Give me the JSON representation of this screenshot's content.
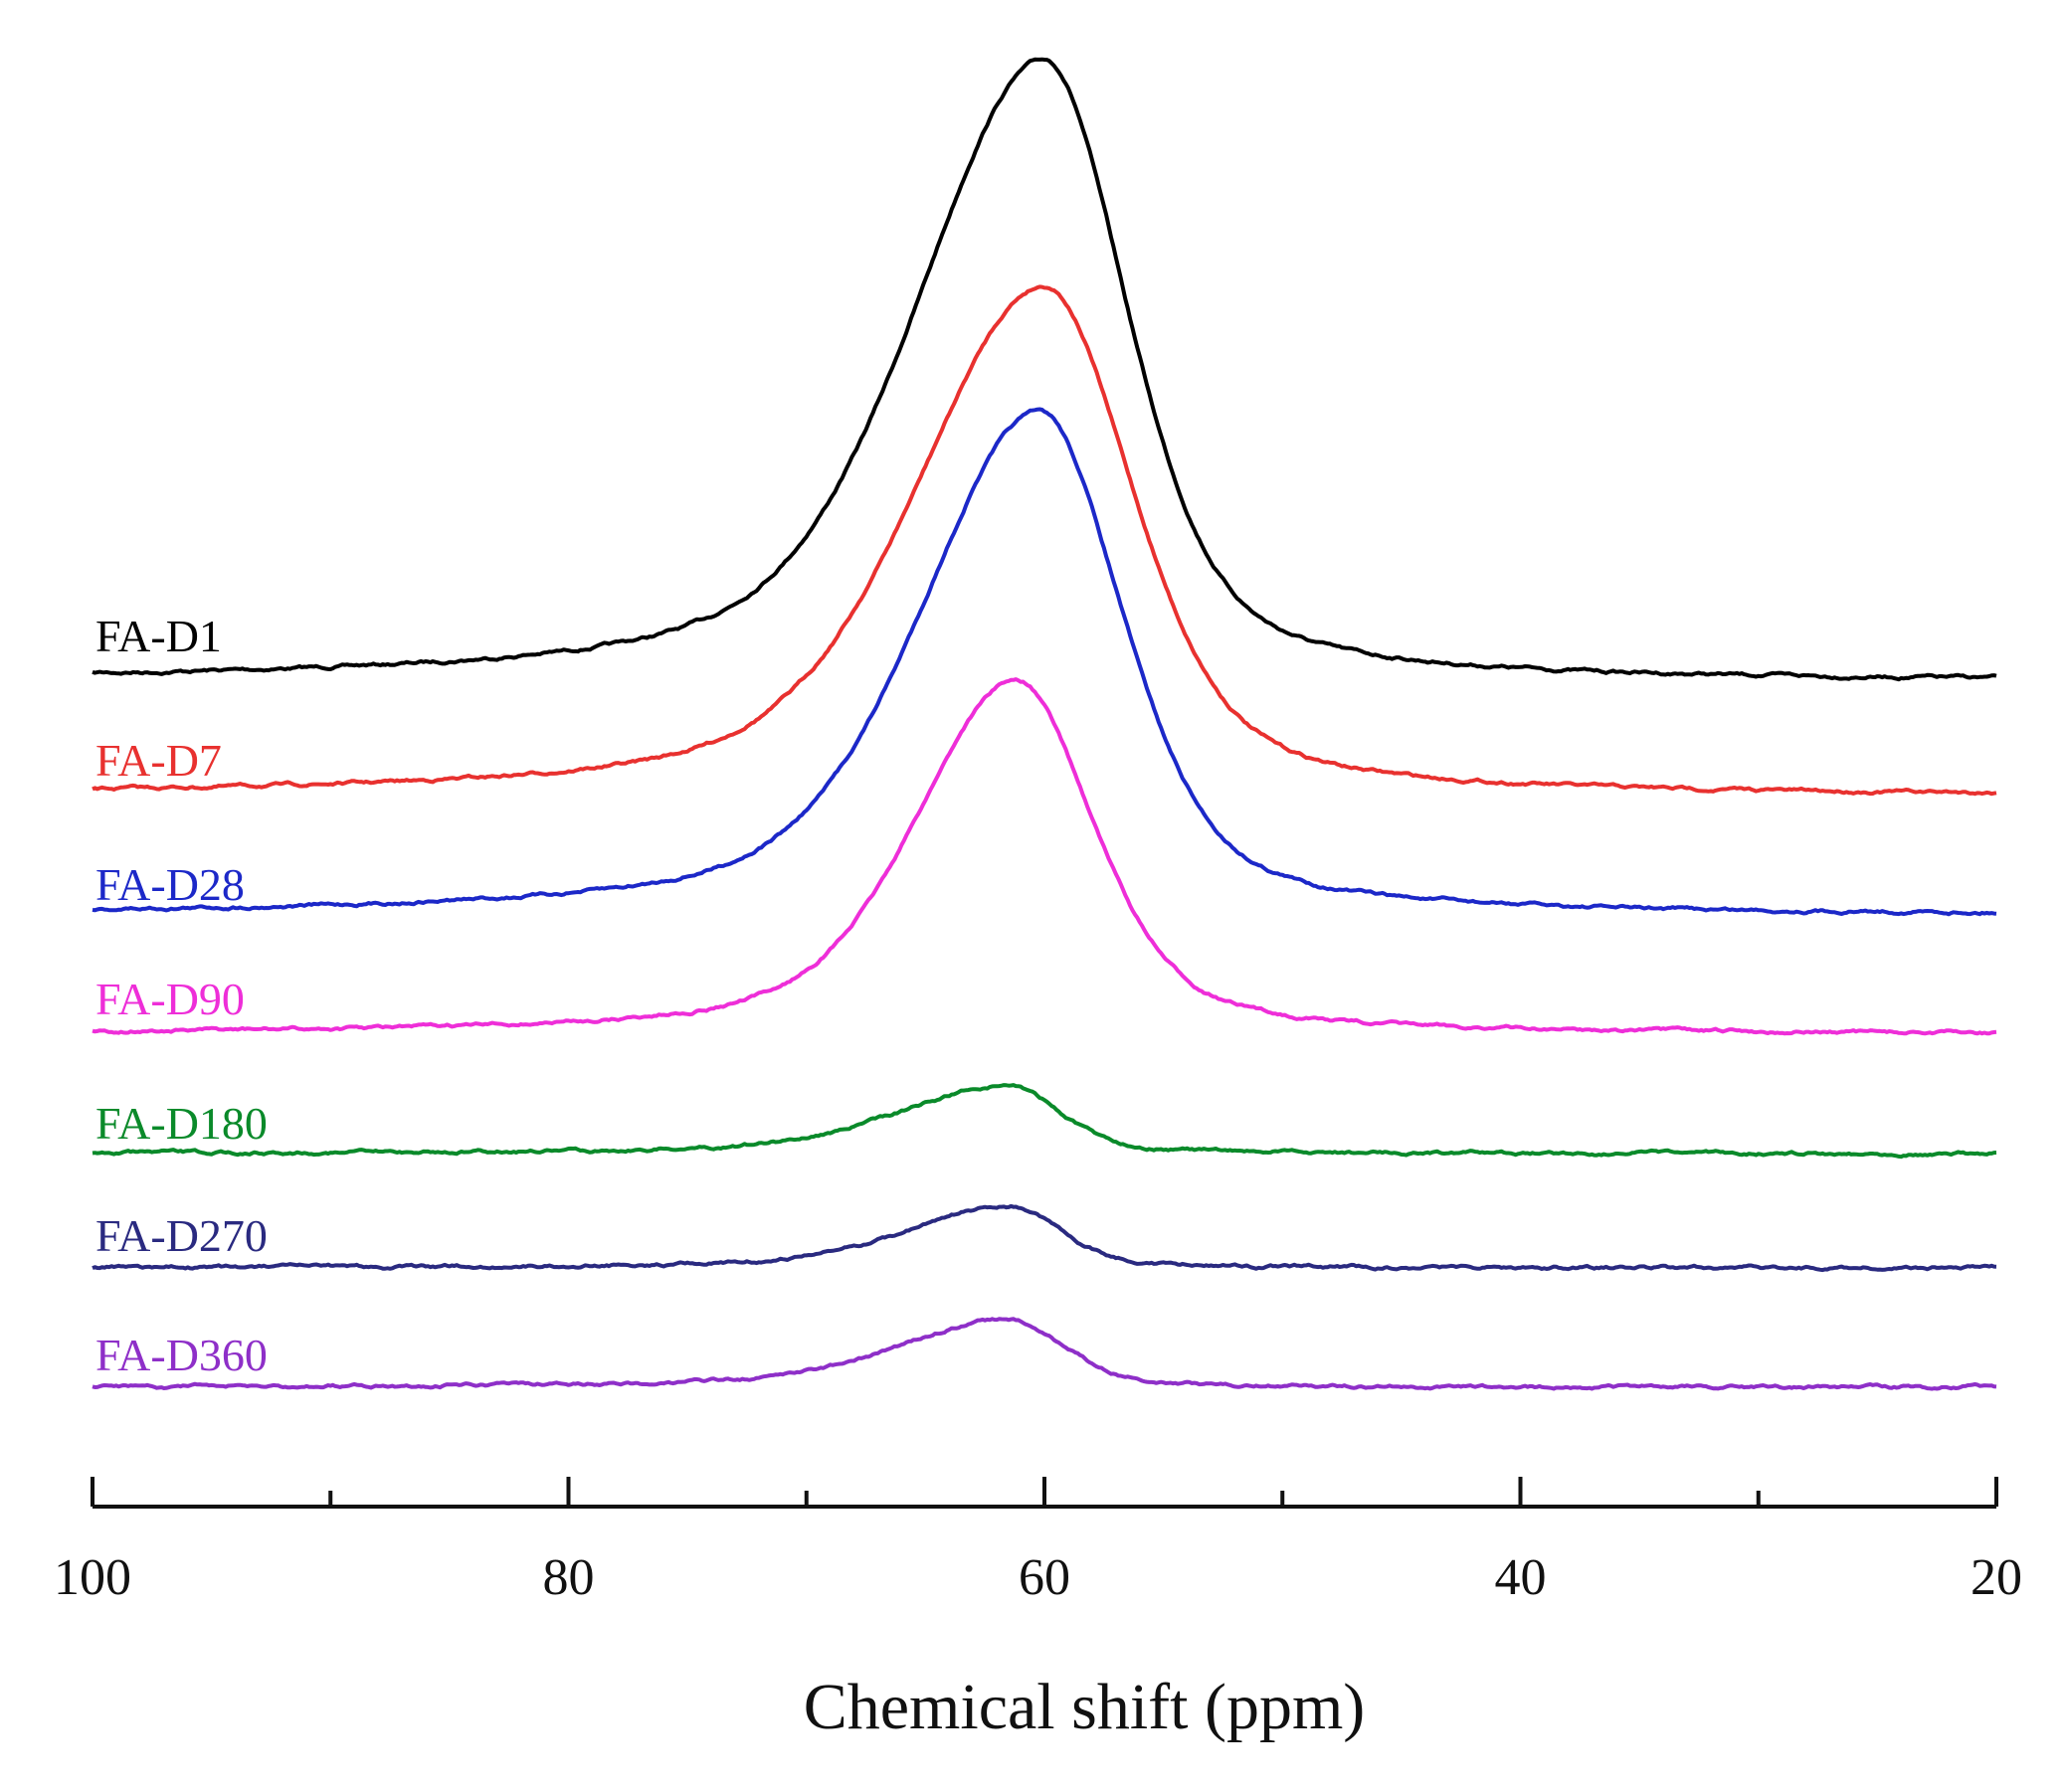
{
  "chart_data": {
    "type": "line",
    "title": "",
    "xlabel": "Chemical shift (ppm)",
    "ylabel": "",
    "xlim": [
      100,
      20
    ],
    "x_reversed": true,
    "xticks": [
      100,
      80,
      60,
      40,
      20
    ],
    "xtick_labels": [
      "100",
      "80",
      "60",
      "40",
      "20"
    ],
    "minor_xticks": [
      90,
      70,
      50,
      30
    ],
    "y_axis_visible": false,
    "grid": false,
    "stacked_offsets": true,
    "series": [
      {
        "name": "FA-D1",
        "label": "FA-D1",
        "color": "#000000",
        "baseline": 0.0,
        "peak_ppm": 60.0,
        "peak_height": 1.0,
        "left_width": 7.0,
        "right_width": 4.5
      },
      {
        "name": "FA-D7",
        "label": "FA-D7",
        "color": "#e8312f",
        "baseline": 0.0,
        "peak_ppm": 60.0,
        "peak_height": 0.82,
        "left_width": 7.0,
        "right_width": 4.8
      },
      {
        "name": "FA-D28",
        "label": "FA-D28",
        "color": "#1c28c8",
        "baseline": 0.0,
        "peak_ppm": 60.2,
        "peak_height": 0.81,
        "left_width": 6.5,
        "right_width": 4.5
      },
      {
        "name": "FA-D90",
        "label": "FA-D90",
        "color": "#ee2ed8",
        "baseline": 0.0,
        "peak_ppm": 61.2,
        "peak_height": 0.57,
        "left_width": 5.5,
        "right_width": 4.2
      },
      {
        "name": "FA-D180",
        "label": "FA-D180",
        "color": "#0a8a2a",
        "baseline": 0.0,
        "peak_ppm": 61.5,
        "peak_height": 0.11,
        "left_width": 6.0,
        "right_width": 2.8
      },
      {
        "name": "FA-D270",
        "label": "FA-D270",
        "color": "#2a2a80",
        "baseline": 0.0,
        "peak_ppm": 61.5,
        "peak_height": 0.1,
        "left_width": 5.5,
        "right_width": 2.8
      },
      {
        "name": "FA-D360",
        "label": "FA-D360",
        "color": "#8e2fc8",
        "baseline": 0.0,
        "peak_ppm": 61.5,
        "peak_height": 0.11,
        "left_width": 6.0,
        "right_width": 3.0
      }
    ]
  }
}
